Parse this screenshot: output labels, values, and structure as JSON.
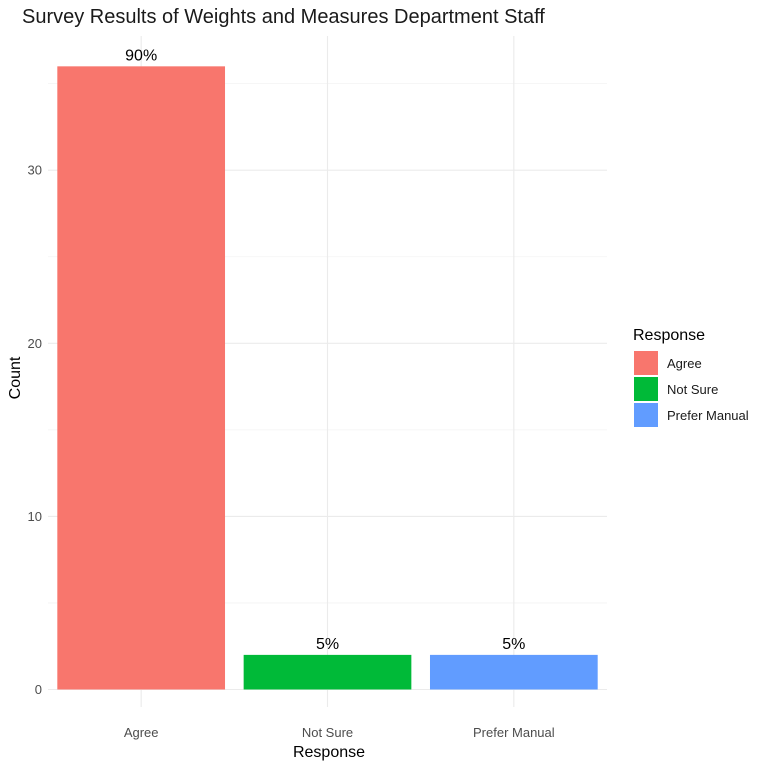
{
  "chart_data": {
    "type": "bar",
    "title": "Survey Results of Weights and Measures Department Staff",
    "xlabel": "Response",
    "ylabel": "Count",
    "categories": [
      "Agree",
      "Not Sure",
      "Prefer Manual"
    ],
    "values": [
      36,
      2,
      2
    ],
    "data_labels": [
      "90%",
      "5%",
      "5%"
    ],
    "colors": [
      "#F8766D",
      "#00BA38",
      "#619CFF"
    ],
    "ylim": [
      0,
      37.7
    ],
    "y_ticks": [
      0,
      10,
      20,
      30
    ],
    "y_tick_labels": [
      "0",
      "10",
      "20",
      "30"
    ],
    "grid": true,
    "legend": {
      "title": "Response",
      "position": "right",
      "entries": [
        "Agree",
        "Not Sure",
        "Prefer Manual"
      ]
    }
  }
}
